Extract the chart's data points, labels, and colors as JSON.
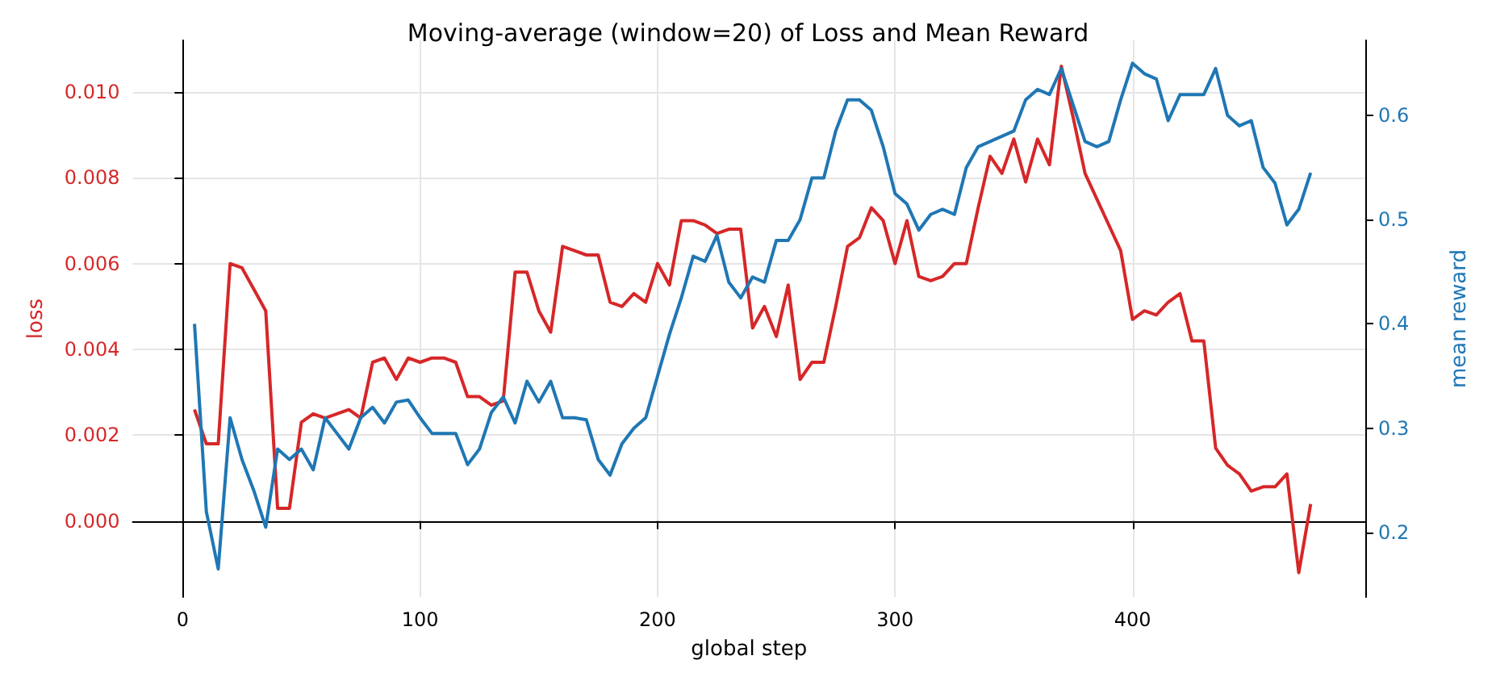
{
  "chart_data": {
    "type": "line",
    "title": "Moving-average (window=20) of Loss and Mean Reward",
    "xlabel": "global step",
    "ylabel": "loss",
    "y2label": "mean reward",
    "x": [
      5,
      10,
      15,
      20,
      25,
      30,
      35,
      40,
      45,
      50,
      55,
      60,
      65,
      70,
      75,
      80,
      85,
      90,
      95,
      100,
      105,
      110,
      115,
      120,
      125,
      130,
      135,
      140,
      145,
      150,
      155,
      160,
      165,
      170,
      175,
      180,
      185,
      190,
      195,
      200,
      205,
      210,
      215,
      220,
      225,
      230,
      235,
      240,
      245,
      250,
      255,
      260,
      265,
      270,
      275,
      280,
      285,
      290,
      295,
      300,
      305,
      310,
      315,
      320,
      325,
      330,
      335,
      340,
      345,
      350,
      355,
      360,
      365,
      370,
      375,
      380,
      385,
      390,
      395,
      400,
      405,
      410,
      415,
      420,
      425,
      430,
      435,
      440,
      445,
      450,
      455,
      460,
      465,
      470,
      475
    ],
    "series": [
      {
        "color": "#d62728",
        "values": [
          0.0026,
          0.0018,
          0.0018,
          0.006,
          0.0059,
          0.0054,
          0.0049,
          0.0003,
          0.0003,
          0.0023,
          0.0025,
          0.0024,
          0.0025,
          0.0026,
          0.0024,
          0.0037,
          0.0038,
          0.0033,
          0.0038,
          0.0037,
          0.0038,
          0.0038,
          0.0037,
          0.0029,
          0.0029,
          0.0027,
          0.0028,
          0.0058,
          0.0058,
          0.0049,
          0.0044,
          0.0064,
          0.0063,
          0.0062,
          0.0062,
          0.0051,
          0.005,
          0.0053,
          0.0051,
          0.006,
          0.0055,
          0.007,
          0.007,
          0.0069,
          0.0067,
          0.0068,
          0.0068,
          0.0045,
          0.005,
          0.0043,
          0.0055,
          0.0033,
          0.0037,
          0.0037,
          0.005,
          0.0064,
          0.0066,
          0.0073,
          0.007,
          0.006,
          0.007,
          0.0057,
          0.0056,
          0.0057,
          0.006,
          0.006,
          0.0073,
          0.0085,
          0.0081,
          0.0089,
          0.0079,
          0.0089,
          0.0083,
          0.0106,
          0.0094,
          0.0081,
          0.0075,
          0.0069,
          0.0063,
          0.0047,
          0.0049,
          0.0048,
          0.0051,
          0.0053,
          0.0042,
          0.0042,
          0.0017,
          0.0013,
          0.0011,
          0.0007,
          0.0008,
          0.0008,
          0.0011,
          -0.0012,
          0.0004
        ]
      },
      {
        "color": "#1f77b4",
        "axis": "y2",
        "values": [
          0.4,
          0.22,
          0.165,
          0.31,
          0.27,
          0.24,
          0.205,
          0.28,
          0.27,
          0.28,
          0.26,
          0.31,
          0.295,
          0.28,
          0.31,
          0.32,
          0.305,
          0.325,
          0.327,
          0.31,
          0.295,
          0.295,
          0.295,
          0.265,
          0.28,
          0.315,
          0.33,
          0.305,
          0.345,
          0.325,
          0.345,
          0.31,
          0.31,
          0.308,
          0.27,
          0.255,
          0.285,
          0.3,
          0.31,
          0.35,
          0.39,
          0.425,
          0.465,
          0.46,
          0.485,
          0.44,
          0.425,
          0.445,
          0.44,
          0.48,
          0.48,
          0.5,
          0.54,
          0.54,
          0.585,
          0.615,
          0.615,
          0.605,
          0.57,
          0.525,
          0.515,
          0.49,
          0.505,
          0.51,
          0.505,
          0.55,
          0.57,
          0.575,
          0.58,
          0.585,
          0.615,
          0.625,
          0.62,
          0.645,
          0.61,
          0.575,
          0.57,
          0.575,
          0.615,
          0.65,
          0.64,
          0.635,
          0.595,
          0.62,
          0.62,
          0.62,
          0.645,
          0.6,
          0.59,
          0.595,
          0.55,
          0.535,
          0.495,
          0.51,
          0.545
        ]
      }
    ],
    "xlim": [
      -21,
      498
    ],
    "xticks": [
      0,
      100,
      200,
      300,
      400
    ],
    "ylim": [
      -0.00177,
      0.0112
    ],
    "yticks": [
      {
        "value": 0,
        "label": "0.000"
      },
      {
        "value": 0.002,
        "label": "0.002"
      },
      {
        "value": 0.004,
        "label": "0.004"
      },
      {
        "value": 0.006,
        "label": "0.006"
      },
      {
        "value": 0.008,
        "label": "0.008"
      },
      {
        "value": 0.01,
        "label": "0.010"
      }
    ],
    "y2lim": [
      0.138,
      0.672
    ],
    "y2ticks": [
      0.2,
      0.3,
      0.4,
      0.5,
      0.6
    ],
    "grid": true
  }
}
